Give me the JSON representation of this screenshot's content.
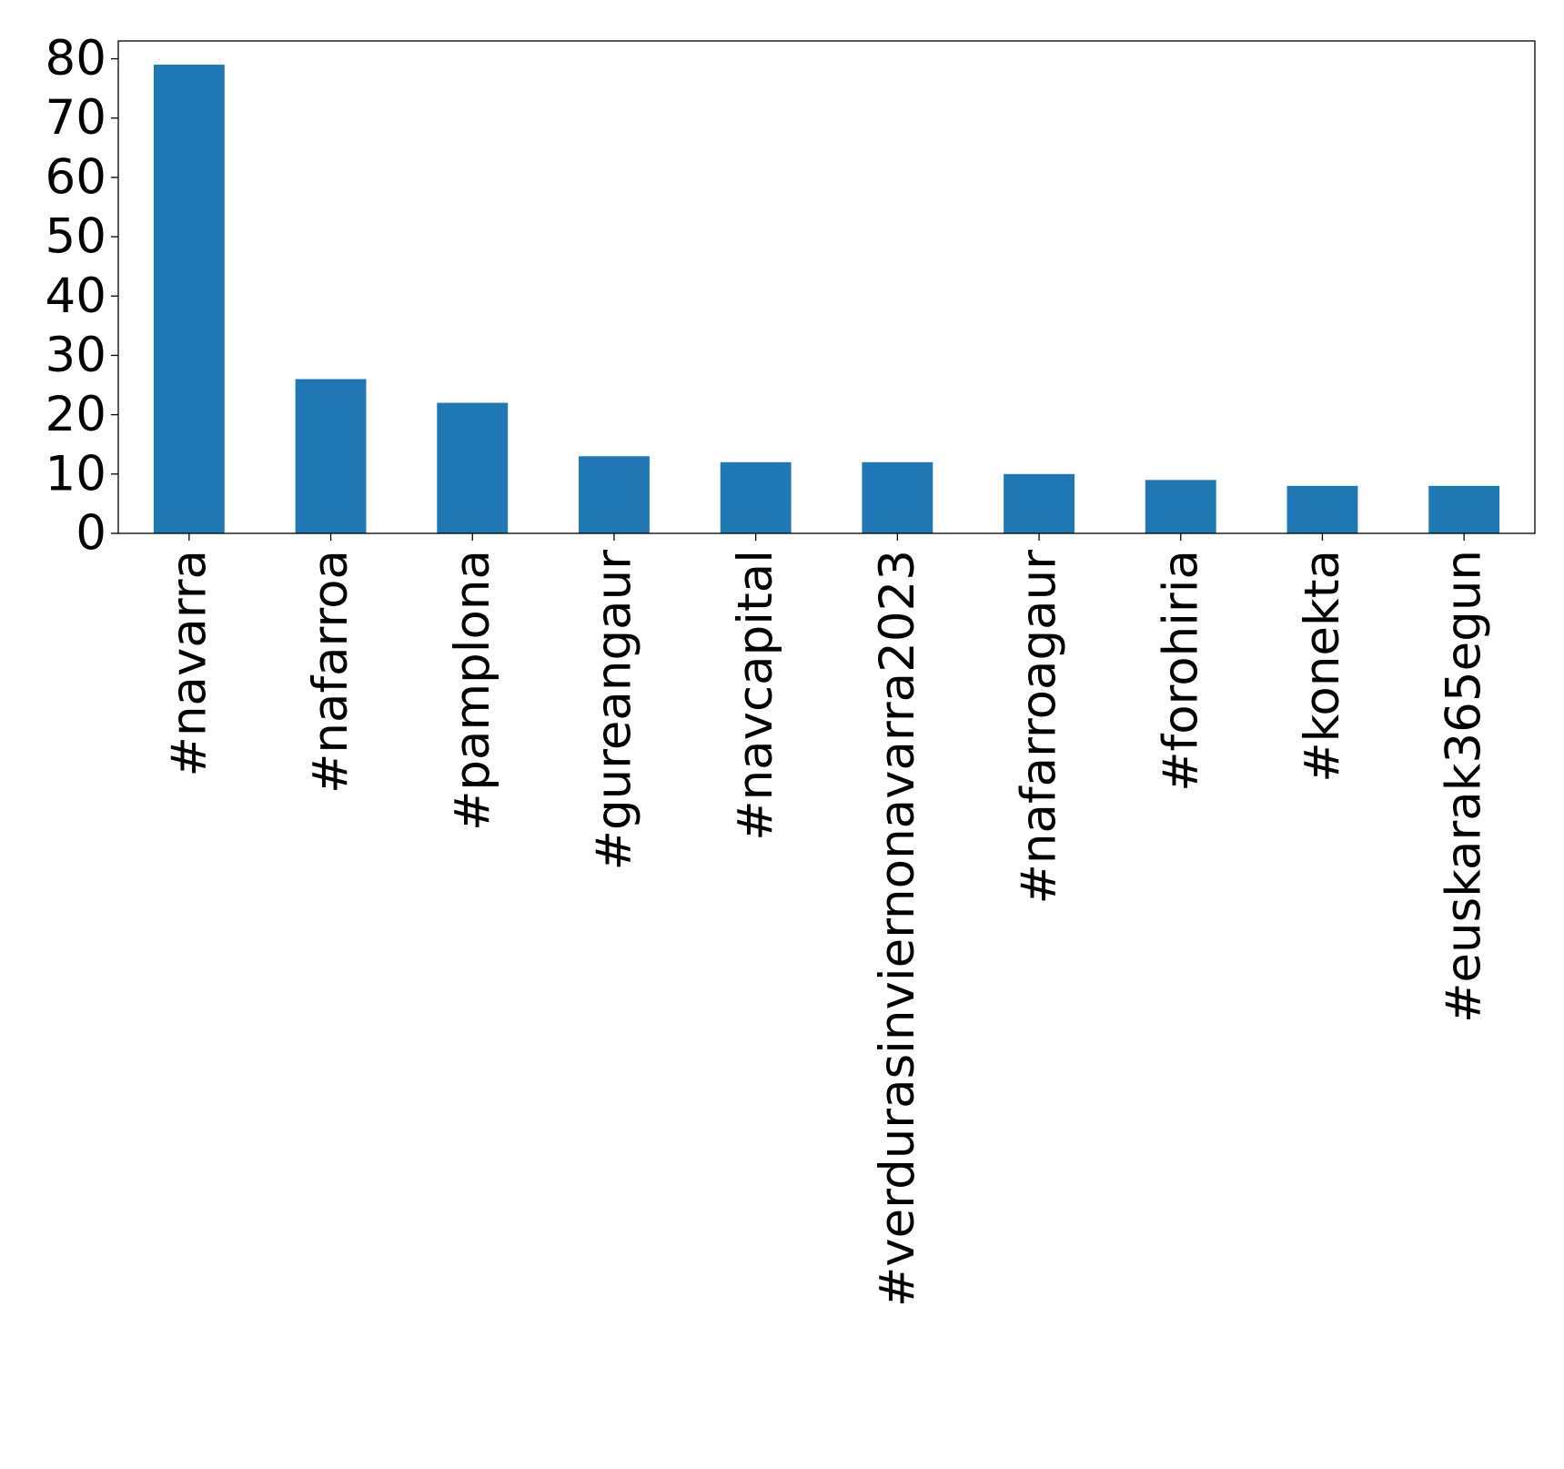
{
  "chart_data": {
    "type": "bar",
    "title": "",
    "xlabel": "",
    "ylabel": "",
    "categories": [
      "#navarra",
      "#nafarroa",
      "#pamplona",
      "#gureangaur",
      "#navcapital",
      "#verdurasinviernonavarra2023",
      "#nafarroagaur",
      "#forohiria",
      "#konekta",
      "#euskarak365egun"
    ],
    "values": [
      79,
      26,
      22,
      13,
      12,
      12,
      10,
      9,
      8,
      8
    ],
    "ylim": [
      0,
      83
    ],
    "yticks": [
      0,
      10,
      20,
      30,
      40,
      50,
      60,
      70,
      80
    ],
    "bar_color": "#1f77b4",
    "grid": false,
    "legend": "none"
  }
}
